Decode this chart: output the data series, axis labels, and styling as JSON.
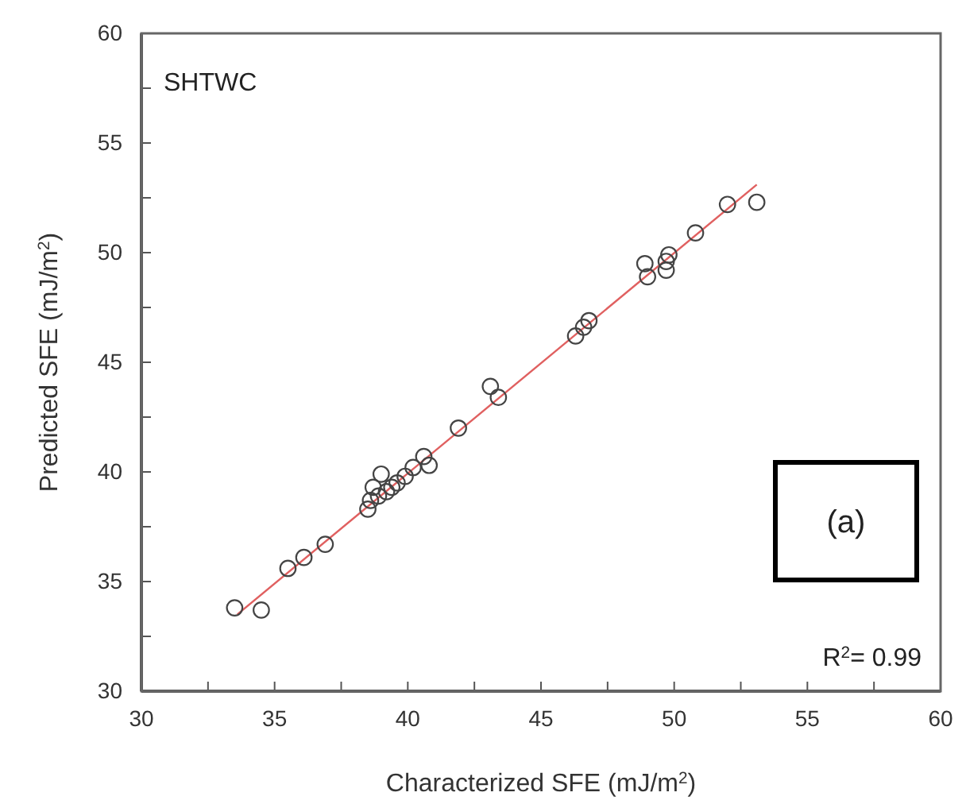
{
  "chart_data": {
    "type": "scatter",
    "xlabel": "Characterized SFE (mJ/m$^{2}$)",
    "ylabel": "Predicted SFE (mJ/m$^{2}$)",
    "annotations": [
      "SHTWC",
      "(a)",
      "R$^{2}$= 0.99"
    ],
    "xlim": [
      30,
      60
    ],
    "ylim": [
      30,
      60
    ],
    "xticks": [
      30,
      {
        "value": 32.5,
        "label": null
      },
      35,
      {
        "value": 37.5,
        "label": null
      },
      40,
      {
        "value": 42.5,
        "label": null
      },
      45,
      {
        "value": 47.5,
        "label": null
      },
      50,
      {
        "value": 52.5,
        "label": null
      },
      55,
      {
        "value": 57.5,
        "label": null
      },
      60
    ],
    "yticks": [
      30,
      {
        "value": 32.5,
        "label": null
      },
      35,
      {
        "value": 37.5,
        "label": null
      },
      40,
      {
        "value": 42.5,
        "label": null
      },
      45,
      {
        "value": 47.5,
        "label": null
      },
      50,
      {
        "value": 52.5,
        "label": null
      },
      55,
      {
        "value": 57.5,
        "label": null
      },
      60
    ],
    "grid": false,
    "series": [
      {
        "type": "scatter",
        "color": "#444444",
        "marker": "circle",
        "x": [
          33.5,
          34.5,
          35.5,
          36.1,
          36.9,
          38.5,
          38.6,
          38.7,
          38.9,
          39.0,
          39.2,
          39.4,
          39.6,
          39.9,
          40.2,
          40.6,
          40.8,
          41.9,
          43.1,
          43.4,
          46.3,
          46.6,
          46.8,
          48.9,
          49.0,
          49.7,
          49.7,
          49.8,
          50.8,
          52.0,
          53.1
        ],
        "values": [
          33.8,
          33.7,
          35.6,
          36.1,
          36.7,
          38.3,
          38.7,
          39.3,
          38.9,
          39.9,
          39.1,
          39.3,
          39.5,
          39.8,
          40.2,
          40.7,
          40.3,
          42.0,
          43.9,
          43.4,
          46.2,
          46.6,
          46.9,
          49.5,
          48.9,
          49.2,
          49.6,
          49.9,
          50.9,
          52.2,
          52.3
        ]
      },
      {
        "type": "line",
        "color": "#e06060",
        "line_style": "solid",
        "x": [
          33.6,
          53.1
        ],
        "values": [
          33.5,
          53.1
        ]
      }
    ]
  }
}
